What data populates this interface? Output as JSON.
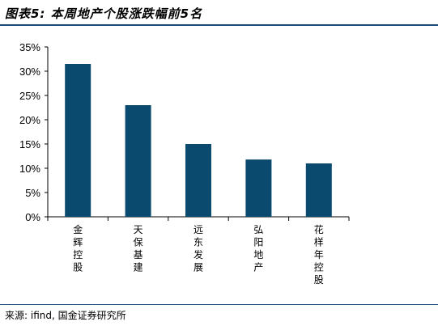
{
  "title": "图表5: 本周地产个股涨跌幅前5名",
  "source": "来源: ifind, 国金证券研究所",
  "colors": {
    "bar": "#0b4a6f",
    "rule": "#1a4c7a",
    "axis": "#000000"
  },
  "chart_data": {
    "type": "bar",
    "categories": [
      "金辉控股",
      "天保基建",
      "远东发展",
      "弘阳地产",
      "花样年控股"
    ],
    "values": [
      31.5,
      23.0,
      15.0,
      11.8,
      11.0
    ],
    "title": "",
    "xlabel": "",
    "ylabel": "",
    "ylim": [
      0,
      35
    ],
    "yticks": [
      "0%",
      "5%",
      "10%",
      "15%",
      "20%",
      "25%",
      "30%",
      "35%"
    ],
    "grid": false
  }
}
